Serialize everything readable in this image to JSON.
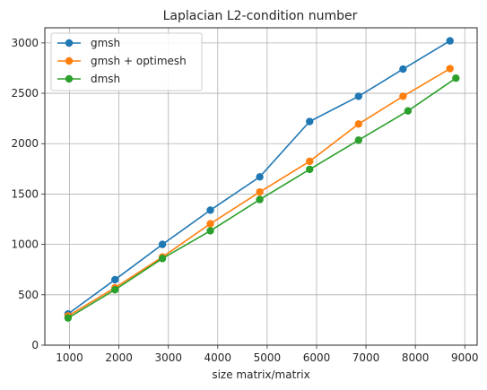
{
  "chart_data": {
    "type": "line",
    "title": "Laplacian L2-condition number",
    "xlabel": "size matrix/matrix",
    "ylabel": "",
    "xlim": [
      500,
      9250
    ],
    "ylim": [
      0,
      3150
    ],
    "xticks": [
      1000,
      2000,
      3000,
      4000,
      5000,
      6000,
      7000,
      8000,
      9000
    ],
    "yticks": [
      0,
      500,
      1000,
      1500,
      2000,
      2500,
      3000
    ],
    "grid": true,
    "legend_position": "top-left",
    "series": [
      {
        "name": "gmsh",
        "color": "#1f77b4",
        "x": [
          970,
          1920,
          2880,
          3850,
          4850,
          5860,
          6850,
          7750,
          8700
        ],
        "y": [
          310,
          650,
          1000,
          1340,
          1670,
          2220,
          2470,
          2740,
          3020
        ]
      },
      {
        "name": "gmsh + optimesh",
        "color": "#ff7f0e",
        "x": [
          970,
          1920,
          2880,
          3850,
          4850,
          5860,
          6850,
          7750,
          8700
        ],
        "y": [
          290,
          570,
          875,
          1205,
          1520,
          1825,
          2195,
          2470,
          2745
        ]
      },
      {
        "name": "dmsh",
        "color": "#2ca02c",
        "x": [
          970,
          1920,
          2880,
          3850,
          4850,
          5860,
          6850,
          7850,
          8820
        ],
        "y": [
          270,
          550,
          860,
          1135,
          1445,
          1745,
          2035,
          2325,
          2650
        ]
      }
    ]
  }
}
